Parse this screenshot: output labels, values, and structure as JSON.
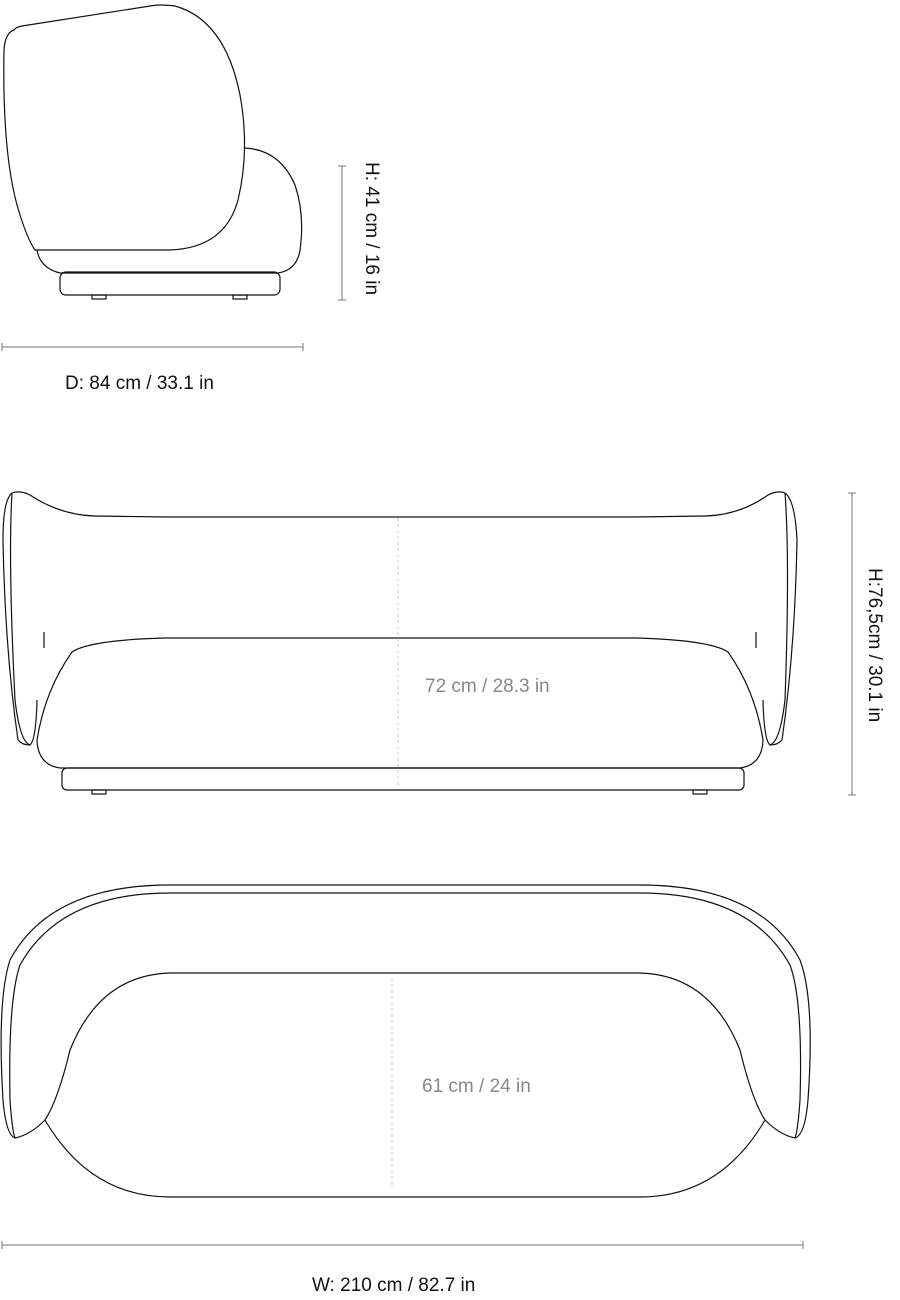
{
  "side_view": {
    "height_label": "H: 41 cm / 16 in",
    "depth_label": "D: 84 cm / 33.1 in"
  },
  "front_view": {
    "height_label": "H:76,5cm / 30.1 in",
    "seat_height_label": "72 cm / 28.3 in"
  },
  "top_view": {
    "seat_depth_label": "61 cm / 24 in",
    "width_label": "W: 210 cm / 82.7 in"
  },
  "colors": {
    "line": "#111111",
    "dimension_text_secondary": "#888888",
    "dimension_line": "#777777"
  }
}
